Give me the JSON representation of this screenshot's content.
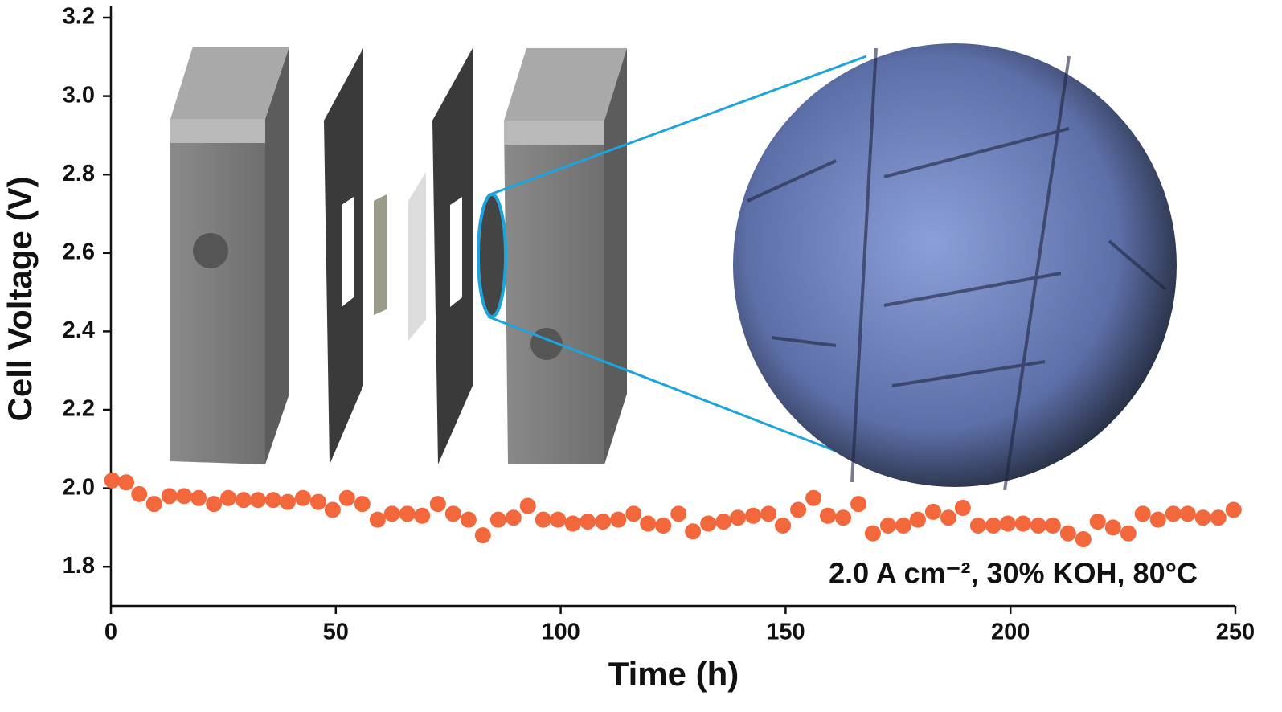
{
  "chart_data": {
    "type": "scatter",
    "x_label": "Time (h)",
    "y_label": "Cell Voltage (V)",
    "annotation": "2.0 A cm⁻², 30% KOH, 80°C",
    "xlim": [
      0,
      250
    ],
    "ylim": [
      1.7,
      3.2
    ],
    "xticks": [
      0,
      50,
      100,
      150,
      200,
      250
    ],
    "yticks": [
      1.8,
      {
        "value": 2,
        "label": "2.0"
      },
      2.2,
      2.4,
      2.6,
      2.8,
      {
        "value": 3,
        "label": "3.0"
      },
      3.2
    ],
    "series": [
      {
        "color": "#f2683c",
        "x": [
          0.3,
          3.4,
          6.3,
          9.6,
          13,
          16.3,
          19.5,
          22.9,
          26.1,
          29.5,
          32.7,
          36.1,
          39.3,
          42.7,
          46.1,
          49.3,
          52.5,
          55.9,
          59.3,
          62.5,
          65.9,
          69.2,
          72.7,
          76.1,
          79.5,
          82.7,
          86.1,
          89.5,
          92.7,
          96.1,
          99.4,
          102.7,
          106,
          109.4,
          112.8,
          116.2,
          119.4,
          122.8,
          126.2,
          129.4,
          132.8,
          136.2,
          139.4,
          142.8,
          146.2,
          149.4,
          152.8,
          156.2,
          159.4,
          162.8,
          166.2,
          169.4,
          172.8,
          176.2,
          179.4,
          182.8,
          186.2,
          189.4,
          192.8,
          196.2,
          199.4,
          202.8,
          206.2,
          209.4,
          212.8,
          216.2,
          219.4,
          222.8,
          226.2,
          229.4,
          232.8,
          236.2,
          239.4,
          242.8,
          246.2,
          249.6
        ],
        "values": [
          2.02,
          2.015,
          1.985,
          1.96,
          1.98,
          1.98,
          1.975,
          1.96,
          1.975,
          1.97,
          1.97,
          1.97,
          1.965,
          1.975,
          1.965,
          1.945,
          1.975,
          1.96,
          1.92,
          1.935,
          1.935,
          1.93,
          1.96,
          1.935,
          1.92,
          1.88,
          1.92,
          1.925,
          1.955,
          1.92,
          1.92,
          1.91,
          1.915,
          1.915,
          1.92,
          1.935,
          1.91,
          1.905,
          1.935,
          1.89,
          1.91,
          1.915,
          1.925,
          1.93,
          1.935,
          1.905,
          1.945,
          1.975,
          1.93,
          1.925,
          1.96,
          1.885,
          1.905,
          1.905,
          1.92,
          1.94,
          1.925,
          1.95,
          1.905,
          1.905,
          1.91,
          1.91,
          1.905,
          1.905,
          1.885,
          1.87,
          1.915,
          1.9,
          1.885,
          1.935,
          1.92,
          1.935,
          1.935,
          1.925,
          1.925,
          1.945
        ]
      }
    ]
  }
}
